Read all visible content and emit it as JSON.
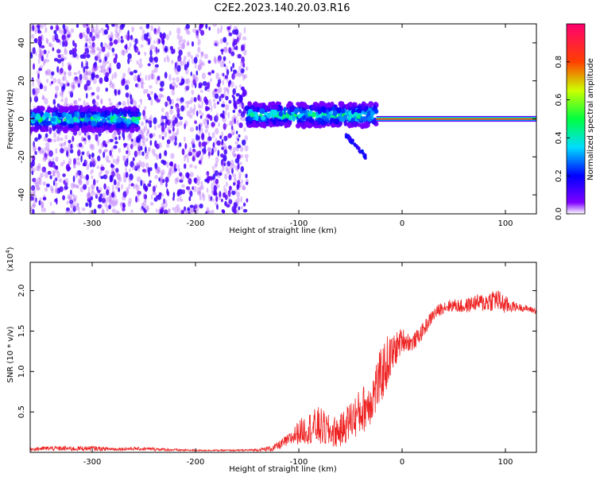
{
  "title": "C2E2.2023.140.20.03.R16",
  "colors": {
    "snr_line": "#ee2222",
    "spectrogram_dots": "#6a00ff",
    "axis": "#000000"
  },
  "chart_data": [
    {
      "type": "heatmap",
      "panel": "top",
      "xlabel": "Height of straight line (km)",
      "ylabel": "Frequency (Hz)",
      "xlim": [
        -360,
        130
      ],
      "ylim": [
        -50,
        50
      ],
      "xticks": [
        -300,
        -200,
        -100,
        0,
        100
      ],
      "xtick_labels": [
        "-300",
        "-200",
        "-100",
        "0",
        "100"
      ],
      "yticks": [
        -40,
        -20,
        0,
        20,
        40
      ],
      "ytick_labels": [
        "-40",
        "-20",
        "0",
        "20",
        "40"
      ],
      "colorbar": {
        "label": "Normalized spectral amplitude",
        "range": [
          0,
          1
        ],
        "ticks": [
          0.0,
          0.2,
          0.4,
          0.6,
          0.8
        ],
        "tick_labels": [
          "0.0",
          "0.2",
          "0.4",
          "0.6",
          "0.8"
        ],
        "colormap": "rainbow (purple-blue-cyan-green-yellow-red-magenta)"
      },
      "regions": [
        {
          "x_range": [
            -360,
            -150
          ],
          "description": "broadband scattered low-amplitude noise",
          "freq_range": [
            -50,
            50
          ]
        },
        {
          "x_range": [
            -360,
            -255
          ],
          "description": "band near 0 Hz",
          "freq_center": 0,
          "freq_halfwidth": 6
        },
        {
          "x_range": [
            -150,
            -25
          ],
          "description": "band near 0 Hz drifting",
          "freq_center": 2,
          "freq_halfwidth": 6
        },
        {
          "x_range": [
            -55,
            -35
          ],
          "description": "descending branch",
          "freq_from": -8,
          "freq_to": -20
        },
        {
          "x_range": [
            -25,
            130
          ],
          "description": "strong stable carrier",
          "freq_center": 0,
          "freq_halfwidth": 1.5
        }
      ]
    },
    {
      "type": "line",
      "panel": "bottom",
      "xlabel": "Height of straight line (km)",
      "ylabel": "SNR (10 * v/v)",
      "y_multiplier": "(x10^4)",
      "xlim": [
        -360,
        130
      ],
      "ylim": [
        0,
        23500
      ],
      "xticks": [
        -300,
        -200,
        -100,
        0,
        100
      ],
      "xtick_labels": [
        "-300",
        "-200",
        "-100",
        "0",
        "100"
      ],
      "yticks": [
        5000,
        10000,
        15000,
        20000
      ],
      "ytick_labels": [
        "0.5",
        "1.0",
        "1.5",
        "2.0"
      ],
      "series": [
        {
          "x": [
            -360,
            -340,
            -320,
            -300,
            -280,
            -260,
            -240,
            -220,
            -200,
            -180,
            -160,
            -140,
            -125,
            -110,
            -100,
            -90,
            -80,
            -70,
            -60,
            -50,
            -40,
            -30,
            -25,
            -20,
            -15,
            -10,
            -5,
            0,
            10,
            20,
            30,
            40,
            50,
            60,
            70,
            80,
            90,
            100,
            110,
            120,
            130
          ],
          "y": [
            400,
            500,
            450,
            500,
            400,
            450,
            400,
            300,
            250,
            250,
            250,
            300,
            500,
            1500,
            2500,
            3000,
            3200,
            2500,
            2600,
            4000,
            5000,
            6500,
            8000,
            9500,
            11000,
            12000,
            13000,
            14000,
            13500,
            15000,
            17000,
            18000,
            18200,
            18000,
            18500,
            18500,
            19000,
            18200,
            18000,
            17800,
            17500
          ],
          "envelope": [
            200,
            300,
            300,
            300,
            200,
            200,
            200,
            150,
            100,
            100,
            100,
            150,
            400,
            800,
            1500,
            2000,
            2500,
            2000,
            2000,
            2500,
            3000,
            3000,
            3500,
            3500,
            3500,
            2500,
            2000,
            1500,
            1000,
            1000,
            800,
            800,
            800,
            900,
            1000,
            1200,
            1500,
            1200,
            500,
            400,
            400
          ]
        }
      ]
    }
  ]
}
